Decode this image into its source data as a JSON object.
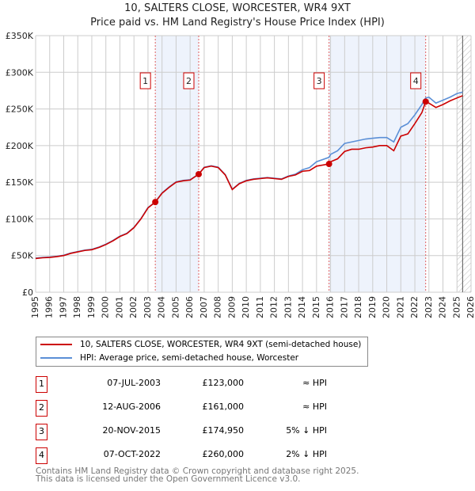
{
  "chart_data": {
    "type": "line",
    "title": "10, SALTERS CLOSE, WORCESTER, WR4 9XT",
    "subtitle": "Price paid vs. HM Land Registry's House Price Index (HPI)",
    "ylim": [
      0,
      350000
    ],
    "xlim": [
      1995,
      2026
    ],
    "ytick_labels": [
      "£0",
      "£50K",
      "£100K",
      "£150K",
      "£200K",
      "£250K",
      "£300K",
      "£350K"
    ],
    "yticks": [
      0,
      50000,
      100000,
      150000,
      200000,
      250000,
      300000,
      350000
    ],
    "xticks": [
      1995,
      1996,
      1997,
      1998,
      1999,
      2000,
      2001,
      2002,
      2003,
      2004,
      2005,
      2006,
      2007,
      2008,
      2009,
      2010,
      2011,
      2012,
      2013,
      2014,
      2015,
      2016,
      2017,
      2018,
      2019,
      2020,
      2021,
      2022,
      2023,
      2024,
      2025,
      2026
    ],
    "grid": true,
    "colors": {
      "price": "#cc0000",
      "hpi": "#5b8fd6",
      "shade": "#eef3fc",
      "marker": "#cc0000"
    },
    "series": [
      {
        "name": "10, SALTERS CLOSE, WORCESTER, WR4 9XT (semi-detached house)",
        "x": [
          1995,
          1995.5,
          1996,
          1996.5,
          1997,
          1997.5,
          1998,
          1998.5,
          1999,
          1999.5,
          2000,
          2000.5,
          2001,
          2001.5,
          2002,
          2002.5,
          2003,
          2003.52,
          2004,
          2004.5,
          2005,
          2005.5,
          2006,
          2006.61,
          2007,
          2007.5,
          2008,
          2008.5,
          2009,
          2009.5,
          2010,
          2010.5,
          2011,
          2011.5,
          2012,
          2012.5,
          2013,
          2013.5,
          2014,
          2014.5,
          2015,
          2015.89,
          2016,
          2016.5,
          2017,
          2017.5,
          2018,
          2018.5,
          2019,
          2019.5,
          2020,
          2020.5,
          2021,
          2021.5,
          2022,
          2022.5,
          2022.77,
          2023,
          2023.5,
          2024,
          2024.5,
          2025,
          2025.4
        ],
        "values": [
          46000,
          47000,
          47500,
          48500,
          50000,
          53000,
          55000,
          57000,
          58000,
          61000,
          65000,
          70000,
          76000,
          80000,
          88000,
          100000,
          115000,
          123000,
          135000,
          143000,
          150000,
          152000,
          153000,
          161000,
          170000,
          172000,
          170000,
          160000,
          140000,
          148000,
          152000,
          154000,
          155000,
          156000,
          155000,
          154000,
          158000,
          160000,
          165000,
          166000,
          172000,
          174950,
          178000,
          182000,
          192000,
          195000,
          195000,
          197000,
          198000,
          200000,
          200000,
          193000,
          213000,
          216000,
          230000,
          245000,
          260000,
          258000,
          252000,
          256000,
          261000,
          265000,
          268000
        ]
      },
      {
        "name": "HPI: Average price, semi-detached house, Worcester",
        "x": [
          1995,
          1995.5,
          1996,
          1996.5,
          1997,
          1997.5,
          1998,
          1998.5,
          1999,
          1999.5,
          2000,
          2000.5,
          2001,
          2001.5,
          2002,
          2002.5,
          2003,
          2003.52,
          2004,
          2004.5,
          2005,
          2005.5,
          2006,
          2006.61,
          2007,
          2007.5,
          2008,
          2008.5,
          2009,
          2009.5,
          2010,
          2010.5,
          2011,
          2011.5,
          2012,
          2012.5,
          2013,
          2013.5,
          2014,
          2014.5,
          2015,
          2015.89,
          2016,
          2016.5,
          2017,
          2017.5,
          2018,
          2018.5,
          2019,
          2019.5,
          2020,
          2020.5,
          2021,
          2021.5,
          2022,
          2022.5,
          2022.77,
          2023,
          2023.5,
          2024,
          2024.5,
          2025,
          2025.4
        ],
        "values": [
          46500,
          47500,
          48000,
          49000,
          50500,
          53500,
          55500,
          57500,
          58500,
          61500,
          65500,
          70500,
          76500,
          80500,
          88500,
          100500,
          115500,
          123000,
          135500,
          143500,
          150500,
          152500,
          153500,
          161000,
          170500,
          172500,
          170500,
          160500,
          140500,
          148500,
          152500,
          154500,
          155500,
          156500,
          155500,
          154500,
          158500,
          161000,
          167000,
          170000,
          178000,
          184000,
          188000,
          193000,
          203000,
          205000,
          207000,
          209000,
          210000,
          211000,
          211000,
          205000,
          225000,
          230000,
          242000,
          256000,
          265000,
          266000,
          258000,
          262000,
          266000,
          271000,
          273000
        ]
      }
    ],
    "sales": [
      {
        "num": "1",
        "x": 2003.52,
        "value": 123000,
        "date": "07-JUL-2003",
        "price": "£123,000",
        "hpi": "≈ HPI"
      },
      {
        "num": "2",
        "x": 2006.61,
        "value": 161000,
        "date": "12-AUG-2006",
        "price": "£161,000",
        "hpi": "≈ HPI"
      },
      {
        "num": "3",
        "x": 2015.89,
        "value": 174950,
        "date": "20-NOV-2015",
        "price": "£174,950",
        "hpi": "5% ↓ HPI"
      },
      {
        "num": "4",
        "x": 2022.77,
        "value": 260000,
        "date": "07-OCT-2022",
        "price": "£260,000",
        "hpi": "2% ↓ HPI"
      }
    ],
    "legend": [
      "10, SALTERS CLOSE, WORCESTER, WR4 9XT (semi-detached house)",
      "HPI: Average price, semi-detached house, Worcester"
    ],
    "footer": [
      "Contains HM Land Registry data © Crown copyright and database right 2025.",
      "This data is licensed under the Open Government Licence v3.0."
    ]
  }
}
